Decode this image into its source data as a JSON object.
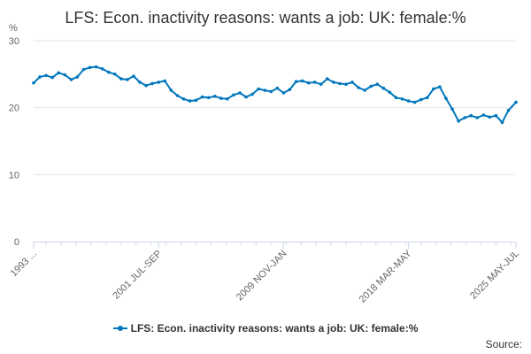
{
  "title": "LFS: Econ. inactivity reasons: wants a job: UK: female:%",
  "source_label": "Source:",
  "colors": {
    "series": "#0077bb",
    "grid": "#e6e6e6",
    "axis": "#ccd6eb",
    "text": "#666666"
  },
  "chart_data": {
    "type": "line",
    "title": "LFS: Econ. inactivity reasons: wants a job: UK: female:%",
    "ylabel": "%",
    "ylim": [
      0,
      30
    ],
    "yticks": [
      0,
      10,
      20,
      30
    ],
    "x_tick_labels": [
      "1993 ...",
      "2001 JUL-SEP",
      "2009 NOV-JAN",
      "2018 MAR-MAY",
      "2025 MAY-JUL"
    ],
    "x_tick_positions": [
      "1993 MAR-MAY",
      "2001 JUL-SEP",
      "2009 NOV-JAN",
      "2018 MAR-MAY",
      "2025 MAY-JUL"
    ],
    "grid": true,
    "legend": "bottom-center",
    "series": [
      {
        "name": "LFS: Econ. inactivity reasons: wants a job: UK: female:%",
        "x": [
          "1993 MAR-MAY",
          "1993 AUG-OCT",
          "1994 JAN-MAR",
          "1994 JUN-AUG",
          "1994 NOV-JAN",
          "1995 APR-JUN",
          "1995 SEP-NOV",
          "1996 FEB-APR",
          "1996 JUL-SEP",
          "1996 DEC-FEB",
          "1997 MAY-JUL",
          "1997 OCT-DEC",
          "1998 MAR-MAY",
          "1998 AUG-OCT",
          "1999 JAN-MAR",
          "1999 JUN-AUG",
          "1999 NOV-JAN",
          "2000 APR-JUN",
          "2000 SEP-NOV",
          "2001 FEB-APR",
          "2001 JUL-SEP",
          "2001 DEC-FEB",
          "2002 MAY-JUL",
          "2002 OCT-DEC",
          "2003 MAR-MAY",
          "2003 AUG-OCT",
          "2004 JAN-MAR",
          "2004 JUN-AUG",
          "2004 NOV-JAN",
          "2005 APR-JUN",
          "2005 SEP-NOV",
          "2006 FEB-APR",
          "2006 JUL-SEP",
          "2006 DEC-FEB",
          "2007 MAY-JUL",
          "2007 OCT-DEC",
          "2008 MAR-MAY",
          "2008 AUG-OCT",
          "2009 JAN-MAR",
          "2009 JUN-AUG",
          "2009 NOV-JAN",
          "2010 APR-JUN",
          "2010 SEP-NOV",
          "2011 FEB-APR",
          "2011 JUL-SEP",
          "2011 DEC-FEB",
          "2012 MAY-JUL",
          "2012 OCT-DEC",
          "2013 MAR-MAY",
          "2013 AUG-OCT",
          "2014 JAN-MAR",
          "2014 JUN-AUG",
          "2014 NOV-JAN",
          "2015 APR-JUN",
          "2015 SEP-NOV",
          "2016 FEB-APR",
          "2016 JUL-SEP",
          "2016 DEC-FEB",
          "2017 MAY-JUL",
          "2017 OCT-DEC",
          "2018 MAR-MAY",
          "2018 AUG-OCT",
          "2019 JAN-MAR",
          "2019 JUN-AUG",
          "2019 NOV-JAN",
          "2020 APR-JUN",
          "2020 SEP-NOV",
          "2021 FEB-APR",
          "2021 JUL-SEP",
          "2021 DEC-FEB",
          "2022 MAY-JUL",
          "2022 OCT-DEC",
          "2023 MAR-MAY",
          "2023 AUG-OCT",
          "2024 JAN-MAR",
          "2024 JUN-AUG",
          "2024 NOV-JAN",
          "2025 MAY-JUL"
        ],
        "values": [
          23.7,
          24.6,
          24.8,
          24.5,
          25.2,
          24.9,
          24.2,
          24.6,
          25.7,
          26.0,
          26.1,
          25.8,
          25.3,
          25.0,
          24.3,
          24.2,
          24.7,
          23.8,
          23.3,
          23.6,
          23.8,
          24.0,
          22.6,
          21.8,
          21.3,
          21.0,
          21.1,
          21.6,
          21.5,
          21.7,
          21.4,
          21.3,
          21.9,
          22.2,
          21.6,
          22.0,
          22.8,
          22.6,
          22.4,
          22.9,
          22.2,
          22.7,
          23.9,
          24.0,
          23.7,
          23.8,
          23.5,
          24.3,
          23.8,
          23.6,
          23.5,
          23.8,
          23.0,
          22.6,
          23.2,
          23.5,
          22.9,
          22.3,
          21.5,
          21.3,
          21.0,
          20.8,
          21.2,
          21.5,
          22.8,
          23.1,
          21.4,
          19.8,
          18.0,
          18.5,
          18.8,
          18.5,
          18.9,
          18.6,
          18.8,
          17.8,
          19.6,
          20.8
        ]
      }
    ]
  }
}
